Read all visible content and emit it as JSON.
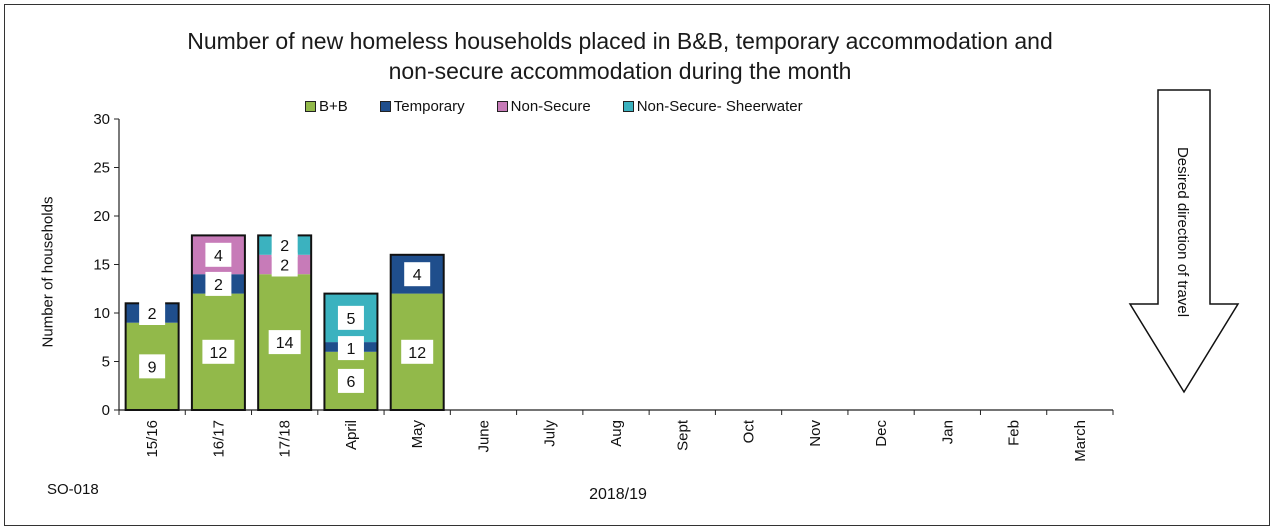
{
  "chart_data": {
    "type": "bar",
    "stacked": true,
    "title_line1": "Number of new homeless households placed in B&B, temporary accommodation and",
    "title_line2": "non-secure accommodation during the month",
    "ylabel": "Number of households",
    "xlabel": "2018/19",
    "ylim": [
      0,
      30
    ],
    "yticks": [
      "0",
      "5",
      "10",
      "15",
      "20",
      "25",
      "30"
    ],
    "categories": [
      "15/16",
      "16/17",
      "17/18",
      "April",
      "May",
      "June",
      "July",
      "Aug",
      "Sept",
      "Oct",
      "Nov",
      "Dec",
      "Jan",
      "Feb",
      "March"
    ],
    "series": [
      {
        "name": "B+B",
        "color": "#92b94a",
        "values": [
          9,
          12,
          14,
          6,
          12,
          null,
          null,
          null,
          null,
          null,
          null,
          null,
          null,
          null,
          null
        ],
        "labels": [
          "9",
          "12",
          "14",
          "6",
          "12"
        ]
      },
      {
        "name": "Temporary",
        "color": "#1f4e8c",
        "values": [
          2,
          2,
          0,
          1,
          4,
          null,
          null,
          null,
          null,
          null,
          null,
          null,
          null,
          null,
          null
        ],
        "labels": [
          "2",
          "2",
          "",
          "1",
          "4"
        ]
      },
      {
        "name": "Non-Secure",
        "color": "#c77bb8",
        "values": [
          0,
          4,
          2,
          0,
          0,
          null,
          null,
          null,
          null,
          null,
          null,
          null,
          null,
          null,
          null
        ],
        "labels": [
          "",
          "4",
          "2",
          "",
          ""
        ]
      },
      {
        "name": "Non-Secure- Sheerwater",
        "color": "#3bb2bf",
        "values": [
          0,
          0,
          2,
          5,
          0,
          null,
          null,
          null,
          null,
          null,
          null,
          null,
          null,
          null,
          null
        ],
        "labels": [
          "",
          "",
          "2",
          "5",
          ""
        ]
      }
    ],
    "grid": false,
    "legend_position": "top"
  },
  "annotations": {
    "code": "SO-018",
    "direction": "Desired direction of travel"
  }
}
